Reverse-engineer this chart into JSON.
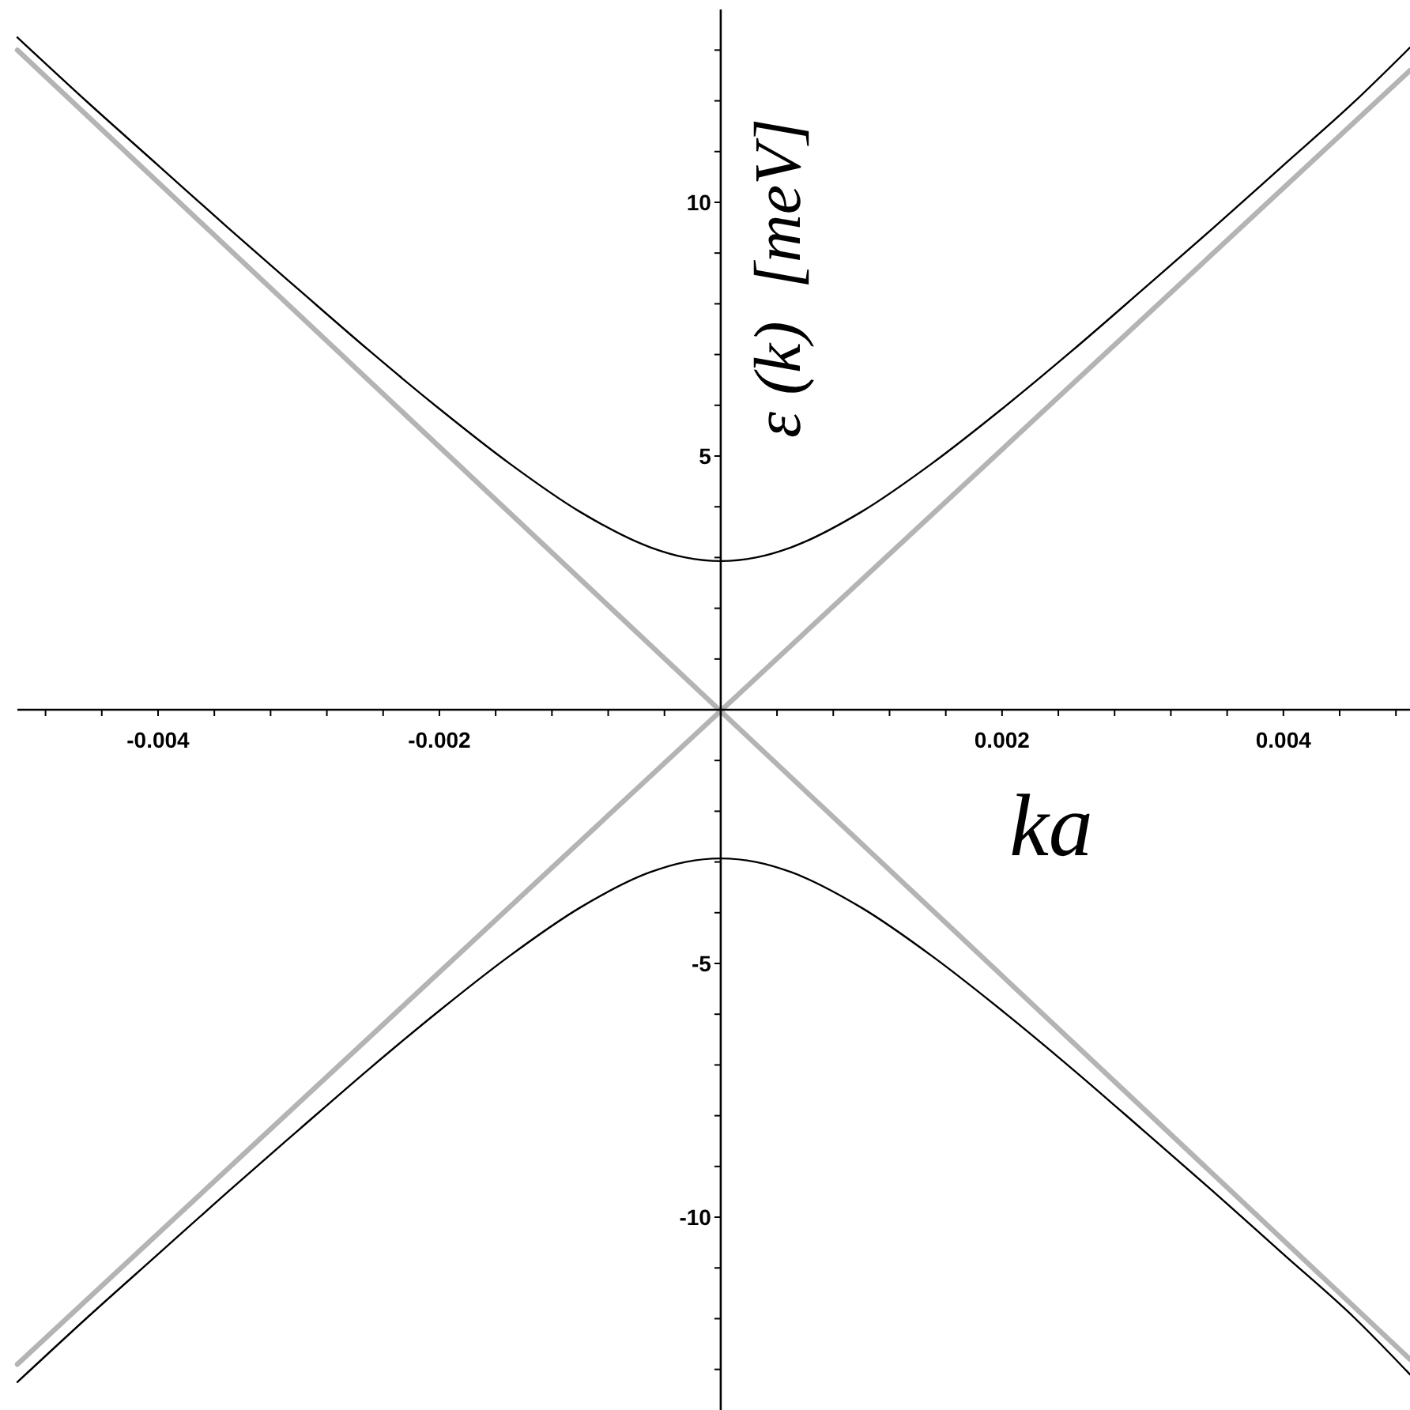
{
  "chart_data": {
    "type": "line",
    "xlabel": "ka",
    "ylabel": "ε (k)  [meV]",
    "xlim": [
      -0.005,
      0.0049
    ],
    "ylim": [
      -13.8,
      13.8
    ],
    "xticks": [
      {
        "value": -0.0048,
        "label": null
      },
      {
        "value": -0.0044,
        "label": null
      },
      -0.004,
      {
        "value": -0.0036,
        "label": null
      },
      {
        "value": -0.0032,
        "label": null
      },
      {
        "value": -0.0028,
        "label": null
      },
      {
        "value": -0.0024,
        "label": null
      },
      -0.002,
      {
        "value": -0.0016,
        "label": null
      },
      {
        "value": -0.0012,
        "label": null
      },
      {
        "value": -0.0008,
        "label": null
      },
      {
        "value": -0.0004,
        "label": null
      },
      {
        "value": 0.0004,
        "label": null
      },
      {
        "value": 0.0008,
        "label": null
      },
      {
        "value": 0.0012,
        "label": null
      },
      {
        "value": 0.0016,
        "label": null
      },
      0.002,
      {
        "value": 0.0024,
        "label": null
      },
      {
        "value": 0.0028,
        "label": null
      },
      {
        "value": 0.0032,
        "label": null
      },
      {
        "value": 0.0036,
        "label": null
      },
      0.004,
      {
        "value": 0.0044,
        "label": null
      },
      {
        "value": 0.0048,
        "label": null
      }
    ],
    "yticks": [
      {
        "value": -13,
        "label": null
      },
      {
        "value": -12,
        "label": null
      },
      {
        "value": -11,
        "label": null
      },
      -10,
      {
        "value": -9,
        "label": null
      },
      {
        "value": -8,
        "label": null
      },
      {
        "value": -7,
        "label": null
      },
      {
        "value": -6,
        "label": null
      },
      -5,
      {
        "value": -4,
        "label": null
      },
      {
        "value": -3,
        "label": null
      },
      {
        "value": -2,
        "label": null
      },
      {
        "value": -1,
        "label": null
      },
      {
        "value": 1,
        "label": null
      },
      {
        "value": 2,
        "label": null
      },
      {
        "value": 3,
        "label": null
      },
      {
        "value": 4,
        "label": null
      },
      5,
      {
        "value": 6,
        "label": null
      },
      {
        "value": 7,
        "label": null
      },
      {
        "value": 8,
        "label": null
      },
      {
        "value": 9,
        "label": null
      },
      10,
      {
        "value": 11,
        "label": null
      },
      {
        "value": 12,
        "label": null
      },
      {
        "value": 13,
        "label": null
      }
    ],
    "series": [
      {
        "color": "#b4b4b4",
        "x": [
          -0.005,
          0.0049
        ],
        "values": [
          -12.9,
          12.6
        ]
      },
      {
        "color": "#b4b4b4",
        "x": [
          -0.005,
          0.0049
        ],
        "values": [
          13.0,
          -12.8
        ]
      },
      {
        "color": "#000000",
        "x": [
          -0.005,
          -0.0045,
          -0.004,
          -0.0035,
          -0.003,
          -0.0025,
          -0.002,
          -0.0015,
          -0.001,
          -0.0005,
          -0.00025,
          0,
          0.00025,
          0.0005,
          0.001,
          0.0015,
          0.002,
          0.0025,
          0.003,
          0.0035,
          0.004,
          0.0045,
          0.0049
        ],
        "values": [
          13.25,
          11.97,
          10.73,
          9.49,
          8.28,
          7.08,
          5.93,
          4.85,
          3.9,
          3.2,
          3.0,
          2.93,
          3.0,
          3.2,
          3.9,
          4.85,
          5.93,
          7.08,
          8.28,
          9.49,
          10.73,
          11.97,
          13.05
        ]
      },
      {
        "color": "#000000",
        "x": [
          -0.005,
          -0.0045,
          -0.004,
          -0.0035,
          -0.003,
          -0.0025,
          -0.002,
          -0.0015,
          -0.001,
          -0.0005,
          -0.00025,
          0,
          0.00025,
          0.0005,
          0.001,
          0.0015,
          0.002,
          0.0025,
          0.003,
          0.0035,
          0.004,
          0.0045,
          0.0049
        ],
        "values": [
          -13.25,
          -11.97,
          -10.73,
          -9.49,
          -8.28,
          -7.08,
          -5.93,
          -4.85,
          -3.9,
          -3.2,
          -3.0,
          -2.93,
          -3.0,
          -3.2,
          -3.9,
          -4.85,
          -5.93,
          -7.08,
          -8.28,
          -9.49,
          -10.73,
          -11.97,
          -13.1
        ]
      }
    ]
  }
}
